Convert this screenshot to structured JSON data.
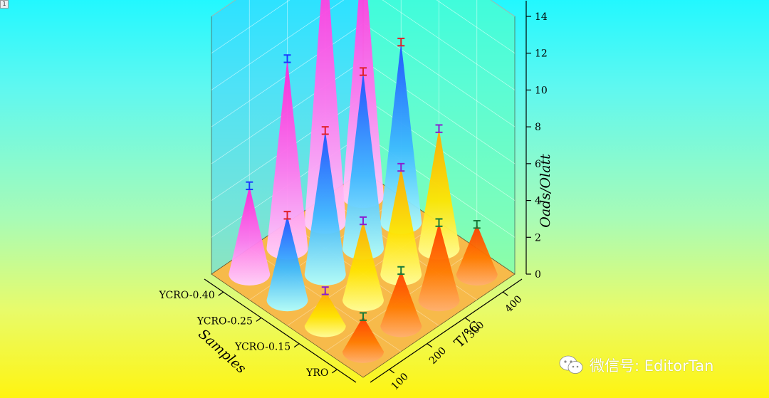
{
  "page_tag": "1",
  "watermark": "微信号: EditorTan",
  "colors": {
    "YRO": "#ff6a00",
    "YCRO-0.15": "#ffd200",
    "YCRO-0.25": "#38a8ff",
    "YCRO-0.40": "#ff44d8"
  },
  "chart_data": {
    "type": "3d-cone",
    "samples": [
      "YRO",
      "YCRO-0.15",
      "YCRO-0.25",
      "YCRO-0.40"
    ],
    "temperatures": [
      100,
      200,
      300,
      400
    ],
    "series": [
      {
        "name": "YRO",
        "values": [
          1.9,
          3.0,
          4.2,
          2.7
        ],
        "errors": [
          0.2,
          0.2,
          0.2,
          0.2
        ]
      },
      {
        "name": "YCRO-0.15",
        "values": [
          1.9,
          4.3,
          5.8,
          6.5
        ],
        "errors": [
          0.2,
          0.2,
          0.2,
          0.2
        ]
      },
      {
        "name": "YCRO-0.25",
        "values": [
          4.6,
          7.8,
          9.6,
          9.8
        ],
        "errors": [
          0.2,
          0.2,
          0.2,
          0.2
        ]
      },
      {
        "name": "YCRO-0.40",
        "values": [
          4.8,
          10.3,
          15.2,
          13.8
        ],
        "errors": [
          0.2,
          0.2,
          0.2,
          0.2
        ]
      }
    ],
    "zlabel": "Oads/Olatt",
    "xlabel": "T/°C",
    "ylabel": "Samples",
    "zlim": [
      0,
      14
    ],
    "z_ticks": [
      0,
      2,
      4,
      6,
      8,
      10,
      12,
      14
    ],
    "x_tick_labels": [
      "100",
      "200",
      "300",
      "400"
    ],
    "y_tick_labels": [
      "YRO",
      "YCRO-0.15",
      "YCRO-0.25",
      "YCRO-0.40"
    ],
    "grid": true
  }
}
